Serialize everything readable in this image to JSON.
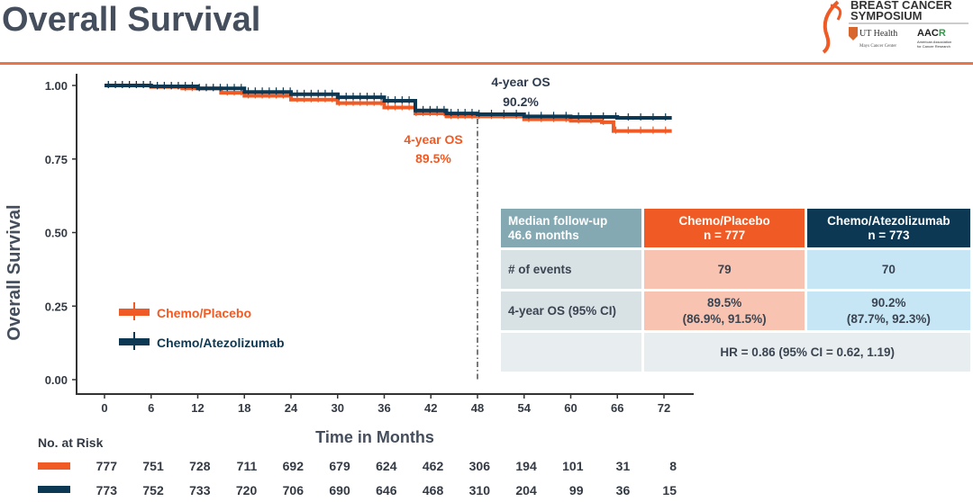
{
  "page": {
    "title": "Overall Survival"
  },
  "logos": {
    "symposium": "Breast Cancer Symposium",
    "ut_health": "UT Health San Antonio Mays Cancer Center",
    "aacr": "AACR American Association for Cancer Research"
  },
  "colors": {
    "placebo": "#f05a24",
    "atezolizumab": "#0c3854",
    "accent_rule": "#e9764a"
  },
  "chart_data": {
    "type": "line",
    "subtype": "kaplan-meier",
    "xlabel": "Time in Months",
    "ylabel": "Overall Survival",
    "xlim": [
      -4,
      76
    ],
    "ylim": [
      0,
      1
    ],
    "xticks": [
      "0",
      "6",
      "12",
      "18",
      "24",
      "30",
      "36",
      "42",
      "48",
      "54",
      "60",
      "66",
      "72"
    ],
    "yticks": [
      "0.00",
      "0.25",
      "0.50",
      "0.75",
      "1.00"
    ],
    "reference_line_x": 48,
    "legend_placement": "bottom-left",
    "series": [
      {
        "name": "Chemo/Placebo",
        "color": "#f05a24",
        "x": [
          0,
          6,
          10,
          15,
          18,
          24,
          30,
          36,
          40,
          44,
          48,
          54,
          60,
          64,
          65.5,
          73
        ],
        "y": [
          1.0,
          0.995,
          0.99,
          0.975,
          0.965,
          0.952,
          0.94,
          0.925,
          0.905,
          0.895,
          0.895,
          0.885,
          0.88,
          0.875,
          0.845,
          0.845
        ]
      },
      {
        "name": "Chemo/Atezolizumab",
        "color": "#0c3854",
        "x": [
          0,
          6,
          12,
          18,
          24,
          30,
          36,
          40,
          44,
          48,
          54,
          60,
          66,
          73
        ],
        "y": [
          1.0,
          0.997,
          0.99,
          0.978,
          0.97,
          0.96,
          0.948,
          0.915,
          0.905,
          0.902,
          0.895,
          0.893,
          0.89,
          0.89
        ]
      }
    ],
    "annotations": [
      {
        "series": "Chemo/Atezolizumab",
        "label": "4-year OS",
        "value": "90.2%"
      },
      {
        "series": "Chemo/Placebo",
        "label": "4-year OS",
        "value": "89.5%"
      }
    ]
  },
  "table": {
    "header": [
      "Median follow-up",
      "46.6 months"
    ],
    "placebo_header": [
      "Chemo/Placebo",
      "n = 777"
    ],
    "atezo_header": [
      "Chemo/Atezolizumab",
      "n = 773"
    ],
    "rows": [
      {
        "label": "# of events",
        "placebo": [
          "79"
        ],
        "atezo": [
          "70"
        ]
      },
      {
        "label": "4-year OS (95% CI)",
        "placebo": [
          "89.5%",
          "(86.9%, 91.5%)"
        ],
        "atezo": [
          "90.2%",
          "(87.7%, 92.3%)"
        ]
      }
    ],
    "hr": "HR = 0.86 (95% CI = 0.62, 1.19)"
  },
  "risk": {
    "title": "No. at Risk",
    "placebo": [
      "777",
      "751",
      "728",
      "711",
      "692",
      "679",
      "624",
      "462",
      "306",
      "194",
      "101",
      "31",
      "8"
    ],
    "atezo": [
      "773",
      "752",
      "733",
      "720",
      "706",
      "690",
      "646",
      "468",
      "310",
      "204",
      "99",
      "36",
      "15"
    ]
  }
}
